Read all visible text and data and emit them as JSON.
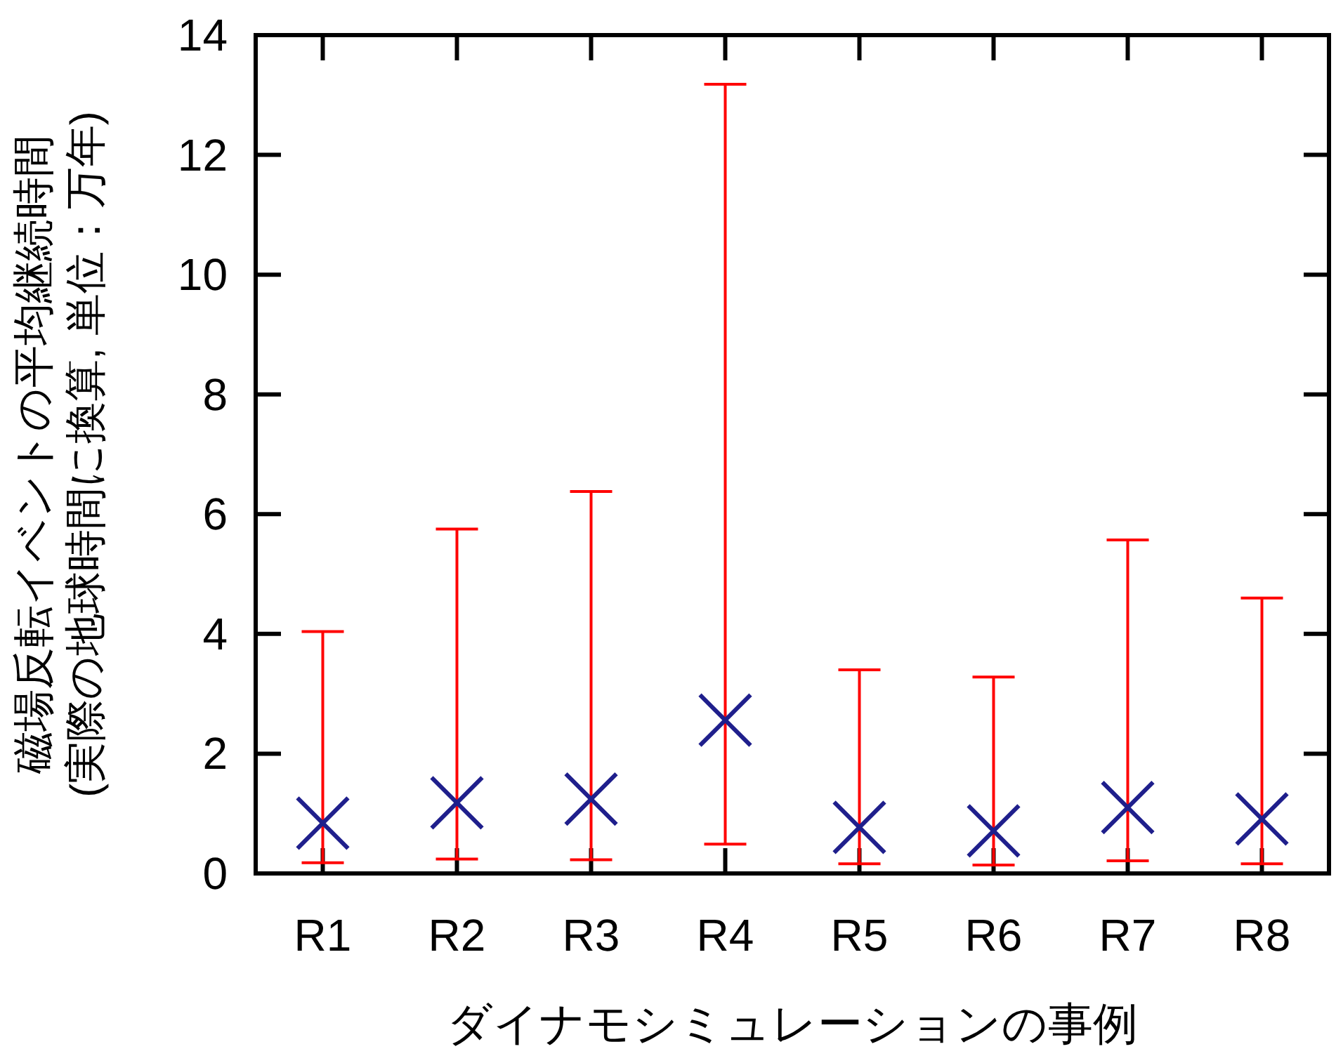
{
  "chart_data": {
    "type": "scatter",
    "xlabel": "ダイナモシミュレーションの事例",
    "ylabel": "磁場反転イベントの平均継続時間\n(実際の地球時間に換算, 単位：万年)",
    "categories": [
      "R1",
      "R2",
      "R3",
      "R4",
      "R5",
      "R6",
      "R7",
      "R8"
    ],
    "series": [
      {
        "color": "#1f1f8c",
        "values": [
          0.84,
          1.18,
          1.24,
          2.56,
          0.77,
          0.71,
          1.1,
          0.91
        ],
        "errors": [
          [
            0.18,
            4.04
          ],
          [
            0.24,
            5.75
          ],
          [
            0.23,
            6.38
          ],
          [
            0.49,
            13.18
          ],
          [
            0.16,
            3.4
          ],
          [
            0.14,
            3.28
          ],
          [
            0.21,
            5.57
          ],
          [
            0.16,
            4.6
          ]
        ]
      }
    ],
    "marker": "cross",
    "ylim": [
      0,
      14
    ],
    "yticks": [
      0,
      2,
      4,
      6,
      8,
      10,
      12,
      14
    ]
  }
}
